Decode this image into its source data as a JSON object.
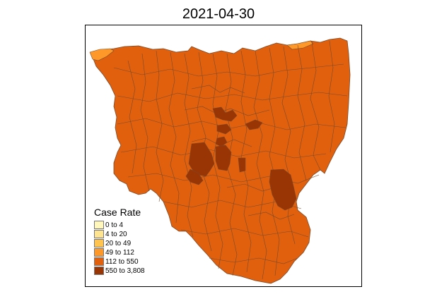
{
  "map": {
    "title": "2021-04-30",
    "legend": {
      "title": "Case Rate",
      "classes": [
        {
          "label": "0 to 4",
          "color": "#fff7bc"
        },
        {
          "label": "4 to 20",
          "color": "#fee391"
        },
        {
          "label": "20 to 49",
          "color": "#fec44f"
        },
        {
          "label": "49 to 112",
          "color": "#fe9929"
        },
        {
          "label": "112 to 550",
          "color": "#e0600e"
        },
        {
          "label": "550 to 3,808",
          "color": "#993404"
        }
      ]
    },
    "colors": {
      "dominant_class": "#e0600e",
      "high_class": "#993404",
      "coastal_class": "#fe9929",
      "boundary": "#7a4a2a"
    }
  }
}
